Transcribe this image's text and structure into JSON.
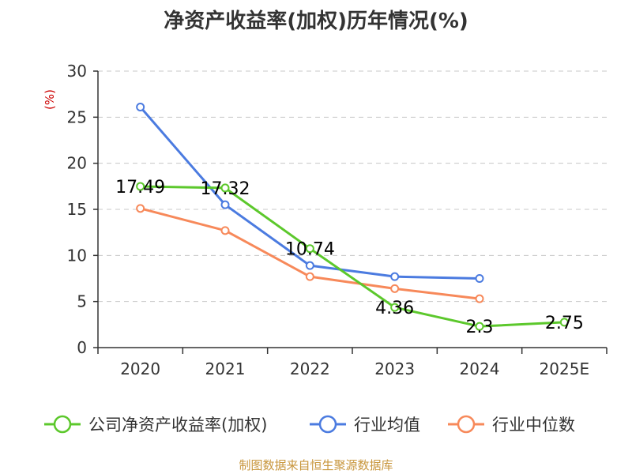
{
  "title": "净资产收益率(加权)历年情况(%)",
  "source": "制图数据来自恒生聚源数据库",
  "colors": {
    "green": "#5cc82c",
    "blue": "#4b7be0",
    "orange": "#f7895a",
    "source": "#c8963c",
    "grid": "#c8c8c8",
    "axis": "#333333",
    "unit": "#cc0000"
  },
  "chart_data": {
    "type": "line",
    "title": "净资产收益率(加权)历年情况(%)",
    "ylabel": "(%)",
    "xlabel": "",
    "categories": [
      "2020",
      "2021",
      "2022",
      "2023",
      "2024",
      "2025E"
    ],
    "ylim": [
      0,
      30
    ],
    "yticks": [
      0,
      5,
      10,
      15,
      20,
      25,
      30
    ],
    "grid": true,
    "legend_position": "bottom",
    "series": [
      {
        "name": "公司净资产收益率(加权)",
        "color": "#5cc82c",
        "values": [
          17.49,
          17.32,
          10.74,
          4.36,
          2.3,
          2.75
        ],
        "labels": [
          "17.49",
          "17.32",
          "10.74",
          "4.36",
          "2.3",
          "2.75"
        ],
        "show_labels": true
      },
      {
        "name": "行业均值",
        "color": "#4b7be0",
        "values": [
          26.1,
          15.5,
          8.9,
          7.7,
          7.5,
          null
        ],
        "show_labels": false
      },
      {
        "name": "行业中位数",
        "color": "#f7895a",
        "values": [
          15.1,
          12.7,
          7.7,
          6.4,
          5.3,
          null
        ],
        "show_labels": false
      }
    ]
  }
}
